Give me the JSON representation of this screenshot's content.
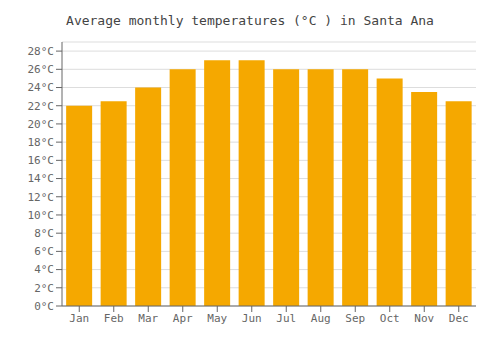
{
  "chart_data": {
    "type": "bar",
    "title": "Average monthly temperatures (°C ) in Santa Ana",
    "categories": [
      "Jan",
      "Feb",
      "Mar",
      "Apr",
      "May",
      "Jun",
      "Jul",
      "Aug",
      "Sep",
      "Oct",
      "Nov",
      "Dec"
    ],
    "values": [
      22,
      22.5,
      24,
      26,
      27,
      27,
      26,
      26,
      26,
      25,
      23.5,
      22.5
    ],
    "color": "#F5A800",
    "ylim": [
      0,
      29
    ],
    "yticks": [
      {
        "value": 0,
        "label": "0°C"
      },
      {
        "value": 2,
        "label": "2°C"
      },
      {
        "value": 4,
        "label": "4°C"
      },
      {
        "value": 6,
        "label": "6°C"
      },
      {
        "value": 8,
        "label": "8°C"
      },
      {
        "value": 10,
        "label": "10°C"
      },
      {
        "value": 12,
        "label": "12°C"
      },
      {
        "value": 14,
        "label": "14°C"
      },
      {
        "value": 16,
        "label": "16°C"
      },
      {
        "value": 18,
        "label": "18°C"
      },
      {
        "value": 20,
        "label": "20°C"
      },
      {
        "value": 22,
        "label": "22°C"
      },
      {
        "value": 24,
        "label": "24°C"
      },
      {
        "value": 26,
        "label": "26°C"
      },
      {
        "value": 28,
        "label": "28°C"
      }
    ],
    "grid": true
  }
}
